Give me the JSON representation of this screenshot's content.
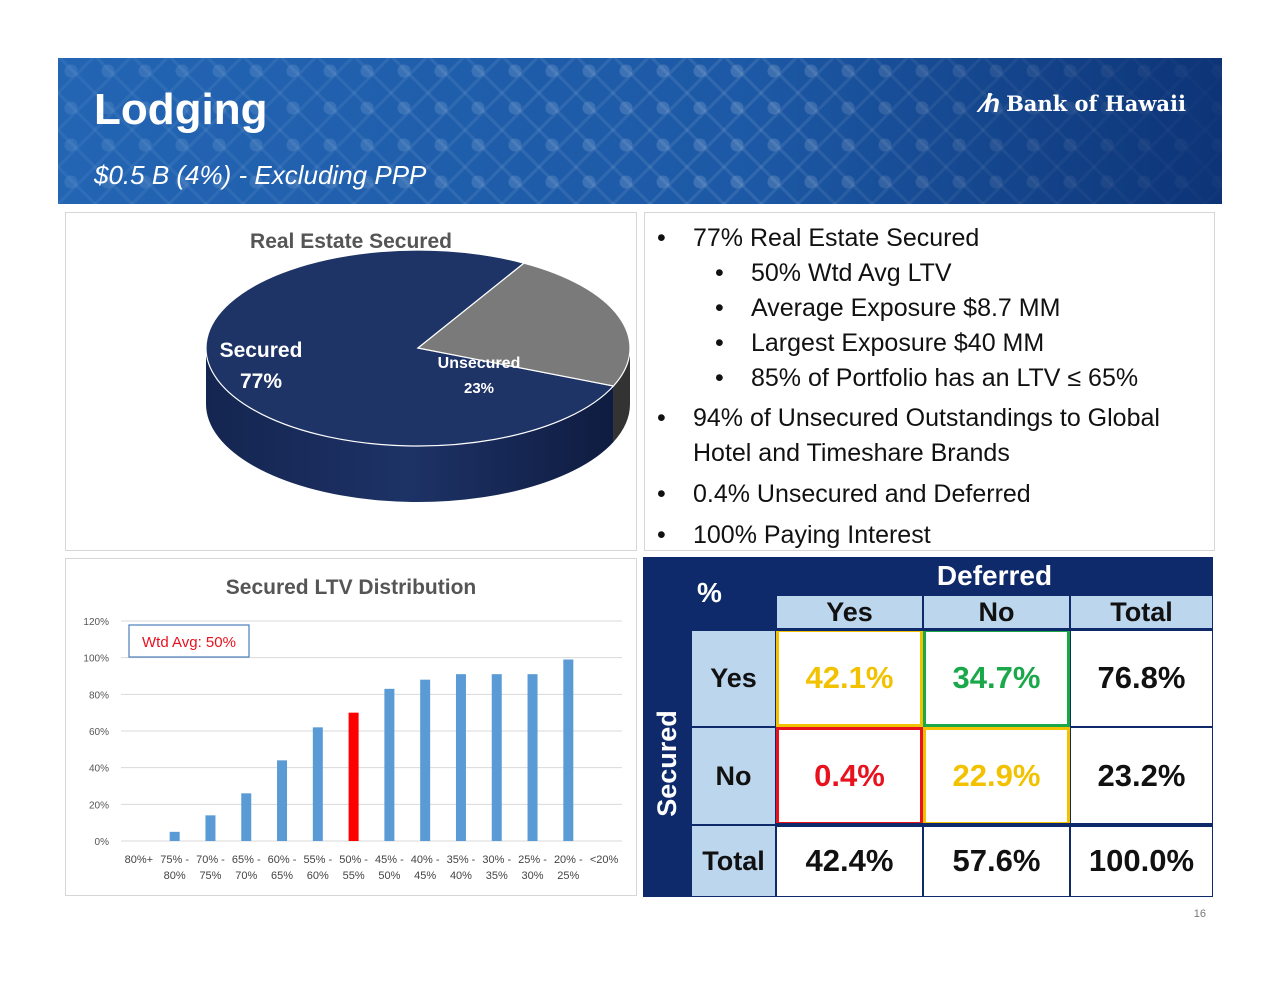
{
  "header": {
    "title": "Lodging",
    "subtitle": "$0.5 B (4%) - Excluding PPP",
    "logo_mark": "∕h",
    "logo_text": "Bank of Hawaii"
  },
  "colors": {
    "navy": "#0e2a6b",
    "secured_slice": "#1e3366",
    "unsecured_slice": "#7a7a7a",
    "bar_blue": "#5b9bd5",
    "bar_highlight": "#ff0000",
    "yellow": "#f2c200",
    "green": "#1aa84a",
    "red": "#e8121f"
  },
  "bullets": [
    {
      "level": 1,
      "text": "77% Real Estate Secured"
    },
    {
      "level": 2,
      "text": "50% Wtd Avg LTV"
    },
    {
      "level": 2,
      "text": "Average Exposure $8.7 MM"
    },
    {
      "level": 2,
      "text": "Largest Exposure $40 MM"
    },
    {
      "level": 2,
      "text": "85% of Portfolio has an LTV ≤ 65%"
    },
    {
      "level": 1,
      "text": "94% of Unsecured Outstandings to Global"
    },
    {
      "level": 1,
      "continuation": true,
      "text": "Hotel and Timeshare Brands"
    },
    {
      "level": 1,
      "text": "0.4% Unsecured and Deferred"
    },
    {
      "level": 1,
      "text": "100% Paying Interest"
    }
  ],
  "matrix": {
    "corner": "%",
    "col_header": "Deferred",
    "row_header": "Secured",
    "col_labels": [
      "Yes",
      "No",
      "Total"
    ],
    "row_labels": [
      "Yes",
      "No",
      "Total"
    ],
    "values": [
      [
        "42.1%",
        "34.7%",
        "76.8%"
      ],
      [
        "0.4%",
        "22.9%",
        "23.2%"
      ],
      [
        "42.4%",
        "57.6%",
        "100.0%"
      ]
    ]
  },
  "page_number": "16",
  "chart_data": [
    {
      "type": "pie",
      "title": "Real Estate Secured",
      "labels": [
        "Secured",
        "Unsecured"
      ],
      "values": [
        77,
        23
      ],
      "value_labels": [
        "77%",
        "23%"
      ]
    },
    {
      "type": "bar",
      "title": "Secured LTV Distribution",
      "annotation": "Wtd Avg: 50%",
      "highlight_index": 6,
      "categories": [
        [
          "80%+"
        ],
        [
          "75% -",
          "80%"
        ],
        [
          "70% -",
          "75%"
        ],
        [
          "65% -",
          "70%"
        ],
        [
          "60% -",
          "65%"
        ],
        [
          "55% -",
          "60%"
        ],
        [
          "50% -",
          "55%"
        ],
        [
          "45% -",
          "50%"
        ],
        [
          "40% -",
          "45%"
        ],
        [
          "35% -",
          "40%"
        ],
        [
          "30% -",
          "35%"
        ],
        [
          "25% -",
          "30%"
        ],
        [
          "20% -",
          "25%"
        ],
        [
          "<20%"
        ]
      ],
      "values": [
        0,
        5,
        14,
        26,
        44,
        62,
        70,
        83,
        88,
        91,
        91,
        91,
        99,
        0
      ],
      "yticks": [
        "0%",
        "20%",
        "40%",
        "60%",
        "80%",
        "100%",
        "120%"
      ],
      "ylim": [
        0,
        120
      ],
      "grid": true
    }
  ]
}
